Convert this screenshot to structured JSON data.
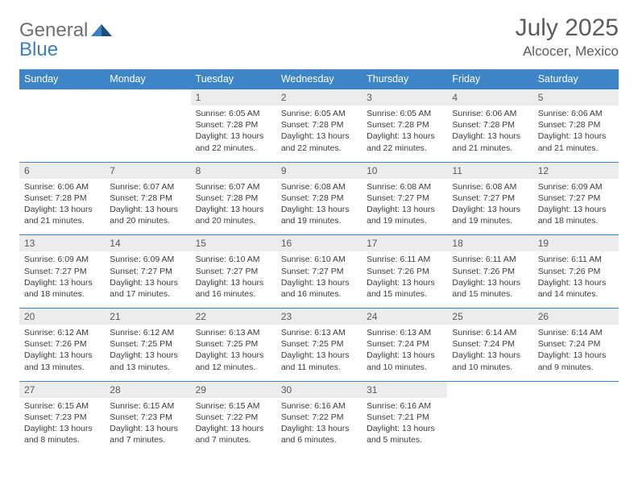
{
  "brand": {
    "general": "General",
    "blue": "Blue"
  },
  "title": {
    "month": "July 2025",
    "location": "Alcocer, Mexico"
  },
  "colors": {
    "header_bg": "#3d85c6",
    "header_text": "#ffffff",
    "daynum_bg": "#ececec",
    "text": "#3b3b3b",
    "title_color": "#5c5c5c"
  },
  "dow": [
    "Sunday",
    "Monday",
    "Tuesday",
    "Wednesday",
    "Thursday",
    "Friday",
    "Saturday"
  ],
  "weeks": [
    [
      {
        "n": "",
        "body": ""
      },
      {
        "n": "",
        "body": ""
      },
      {
        "n": "1",
        "sr": "6:05 AM",
        "ss": "7:28 PM",
        "dl": "13 hours and 22 minutes."
      },
      {
        "n": "2",
        "sr": "6:05 AM",
        "ss": "7:28 PM",
        "dl": "13 hours and 22 minutes."
      },
      {
        "n": "3",
        "sr": "6:05 AM",
        "ss": "7:28 PM",
        "dl": "13 hours and 22 minutes."
      },
      {
        "n": "4",
        "sr": "6:06 AM",
        "ss": "7:28 PM",
        "dl": "13 hours and 21 minutes."
      },
      {
        "n": "5",
        "sr": "6:06 AM",
        "ss": "7:28 PM",
        "dl": "13 hours and 21 minutes."
      }
    ],
    [
      {
        "n": "6",
        "sr": "6:06 AM",
        "ss": "7:28 PM",
        "dl": "13 hours and 21 minutes."
      },
      {
        "n": "7",
        "sr": "6:07 AM",
        "ss": "7:28 PM",
        "dl": "13 hours and 20 minutes."
      },
      {
        "n": "8",
        "sr": "6:07 AM",
        "ss": "7:28 PM",
        "dl": "13 hours and 20 minutes."
      },
      {
        "n": "9",
        "sr": "6:08 AM",
        "ss": "7:28 PM",
        "dl": "13 hours and 19 minutes."
      },
      {
        "n": "10",
        "sr": "6:08 AM",
        "ss": "7:27 PM",
        "dl": "13 hours and 19 minutes."
      },
      {
        "n": "11",
        "sr": "6:08 AM",
        "ss": "7:27 PM",
        "dl": "13 hours and 19 minutes."
      },
      {
        "n": "12",
        "sr": "6:09 AM",
        "ss": "7:27 PM",
        "dl": "13 hours and 18 minutes."
      }
    ],
    [
      {
        "n": "13",
        "sr": "6:09 AM",
        "ss": "7:27 PM",
        "dl": "13 hours and 18 minutes."
      },
      {
        "n": "14",
        "sr": "6:09 AM",
        "ss": "7:27 PM",
        "dl": "13 hours and 17 minutes."
      },
      {
        "n": "15",
        "sr": "6:10 AM",
        "ss": "7:27 PM",
        "dl": "13 hours and 16 minutes."
      },
      {
        "n": "16",
        "sr": "6:10 AM",
        "ss": "7:27 PM",
        "dl": "13 hours and 16 minutes."
      },
      {
        "n": "17",
        "sr": "6:11 AM",
        "ss": "7:26 PM",
        "dl": "13 hours and 15 minutes."
      },
      {
        "n": "18",
        "sr": "6:11 AM",
        "ss": "7:26 PM",
        "dl": "13 hours and 15 minutes."
      },
      {
        "n": "19",
        "sr": "6:11 AM",
        "ss": "7:26 PM",
        "dl": "13 hours and 14 minutes."
      }
    ],
    [
      {
        "n": "20",
        "sr": "6:12 AM",
        "ss": "7:26 PM",
        "dl": "13 hours and 13 minutes."
      },
      {
        "n": "21",
        "sr": "6:12 AM",
        "ss": "7:25 PM",
        "dl": "13 hours and 13 minutes."
      },
      {
        "n": "22",
        "sr": "6:13 AM",
        "ss": "7:25 PM",
        "dl": "13 hours and 12 minutes."
      },
      {
        "n": "23",
        "sr": "6:13 AM",
        "ss": "7:25 PM",
        "dl": "13 hours and 11 minutes."
      },
      {
        "n": "24",
        "sr": "6:13 AM",
        "ss": "7:24 PM",
        "dl": "13 hours and 10 minutes."
      },
      {
        "n": "25",
        "sr": "6:14 AM",
        "ss": "7:24 PM",
        "dl": "13 hours and 10 minutes."
      },
      {
        "n": "26",
        "sr": "6:14 AM",
        "ss": "7:24 PM",
        "dl": "13 hours and 9 minutes."
      }
    ],
    [
      {
        "n": "27",
        "sr": "6:15 AM",
        "ss": "7:23 PM",
        "dl": "13 hours and 8 minutes."
      },
      {
        "n": "28",
        "sr": "6:15 AM",
        "ss": "7:23 PM",
        "dl": "13 hours and 7 minutes."
      },
      {
        "n": "29",
        "sr": "6:15 AM",
        "ss": "7:22 PM",
        "dl": "13 hours and 7 minutes."
      },
      {
        "n": "30",
        "sr": "6:16 AM",
        "ss": "7:22 PM",
        "dl": "13 hours and 6 minutes."
      },
      {
        "n": "31",
        "sr": "6:16 AM",
        "ss": "7:21 PM",
        "dl": "13 hours and 5 minutes."
      },
      {
        "n": "",
        "body": ""
      },
      {
        "n": "",
        "body": ""
      }
    ]
  ],
  "labels": {
    "sunrise": "Sunrise:",
    "sunset": "Sunset:",
    "daylight": "Daylight:"
  }
}
